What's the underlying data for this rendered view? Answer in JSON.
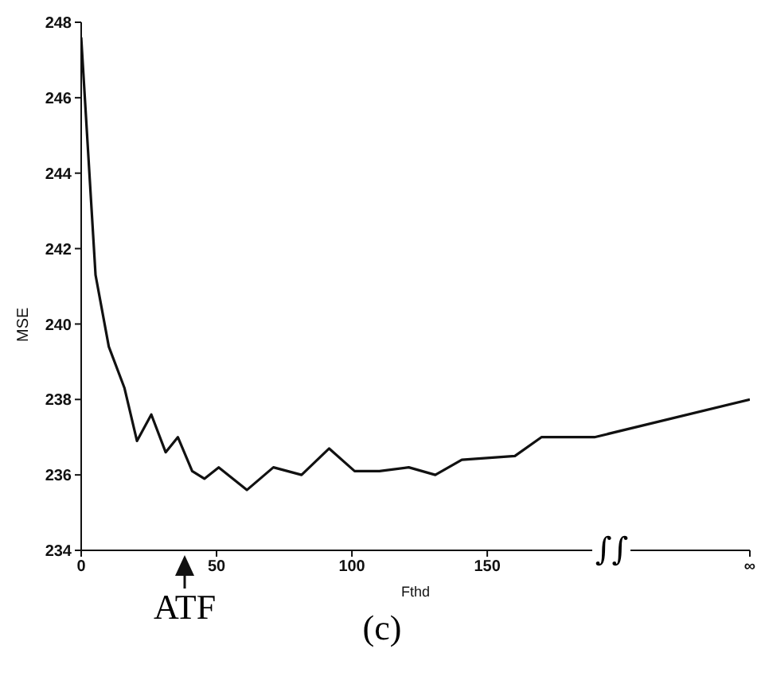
{
  "chart_data": {
    "type": "line",
    "xlabel": "Fthd",
    "ylabel": "MSE",
    "x": [
      0,
      5.3,
      10.2,
      16,
      20.6,
      25.9,
      31.2,
      35.7,
      41,
      45.5,
      50.8,
      61.2,
      71,
      81.4,
      91.6,
      101,
      110.2,
      121,
      130.8,
      140.6,
      160.2,
      170,
      189.6,
      247
    ],
    "series": [
      {
        "color": "#111111",
        "values": [
          247.6,
          241.3,
          239.4,
          238.3,
          236.9,
          237.6,
          236.6,
          237,
          236.1,
          235.9,
          236.2,
          235.6,
          236.2,
          236,
          236.7,
          236.1,
          236.1,
          236.2,
          236,
          236.4,
          236.5,
          237,
          237,
          238
        ]
      }
    ],
    "xlim": [
      0,
      247
    ],
    "xticks": [
      0,
      50,
      100,
      150,
      {
        "value": 247,
        "label": "∞"
      }
    ],
    "ylim": [
      234,
      248
    ],
    "yticks": [
      234,
      236,
      238,
      240,
      242,
      244,
      246,
      248
    ],
    "grid": false,
    "legend": false,
    "marker": "none",
    "line_style": "solid",
    "annotations": [
      {
        "text": "∫∫",
        "x": 196,
        "y": 234
      },
      "ATF",
      "(c)"
    ]
  }
}
